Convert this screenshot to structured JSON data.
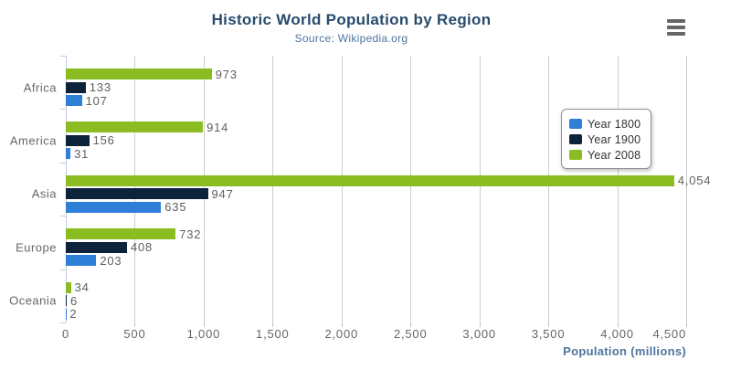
{
  "chart_data": {
    "type": "bar",
    "orientation": "horizontal",
    "title": "Historic World Population by Region",
    "subtitle": "Source: Wikipedia.org",
    "xlabel": "Population (millions)",
    "categories": [
      "Africa",
      "America",
      "Asia",
      "Europe",
      "Oceania"
    ],
    "series": [
      {
        "name": "Year 1800",
        "color": "#2f7ed8",
        "values": [
          107,
          31,
          635,
          203,
          2
        ]
      },
      {
        "name": "Year 1900",
        "color": "#0d233a",
        "values": [
          133,
          156,
          947,
          408,
          6
        ]
      },
      {
        "name": "Year 2008",
        "color": "#8bbc21",
        "values": [
          973,
          914,
          4054,
          732,
          34
        ]
      }
    ],
    "series_display_order_top_to_bottom": [
      "Year 2008",
      "Year 1900",
      "Year 1800"
    ],
    "data_labels": [
      "973",
      "133",
      "107",
      "914",
      "156",
      "31",
      "4,054",
      "947",
      "635",
      "732",
      "408",
      "203",
      "34",
      "6",
      "2"
    ],
    "xlim": [
      0,
      4500
    ],
    "x_tick_step": 500,
    "x_tick_labels": [
      "0",
      "500",
      "1,000",
      "1,500",
      "2,000",
      "2,500",
      "3,000",
      "3,500",
      "4,000",
      "4,500"
    ],
    "grid": true,
    "legend_position": "right-floating"
  },
  "icons": {
    "menu": "hamburger-icon"
  },
  "colors": {
    "background": "#ffffff",
    "title": "#274b6d",
    "subtitle": "#4d759e",
    "axis_title": "#4d759e",
    "tick_label": "#666666",
    "data_label": "#606060",
    "grid_line": "#cccccc",
    "category_axis_line": "#c0d0e0",
    "value_tick_mark": "#c0c0c0",
    "legend_border": "#909090",
    "menu_icon": "#666666"
  }
}
